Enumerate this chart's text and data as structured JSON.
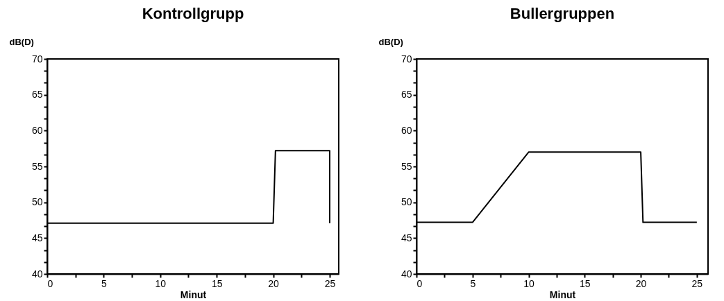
{
  "chart_data": [
    {
      "type": "line",
      "title": "Kontrollgrupp",
      "xlabel": "Minut",
      "ylabel": "dB(D)",
      "series": [
        {
          "color": "#000000",
          "x": [
            0,
            20,
            20.2,
            25,
            25
          ],
          "values": [
            47.1,
            47.1,
            57.2,
            57.2,
            47.1
          ]
        }
      ],
      "xlim": [
        0,
        25.8
      ],
      "xticks": [
        0,
        {
          "value": 2.5,
          "label": null
        },
        5,
        {
          "value": 7.5,
          "label": null
        },
        10,
        {
          "value": 12.5,
          "label": null
        },
        15,
        {
          "value": 17.5,
          "label": null
        },
        20,
        {
          "value": 22.5,
          "label": null
        },
        25
      ],
      "ylim": [
        40,
        70
      ],
      "yticks": [
        40,
        {
          "value": 41.67,
          "label": null
        },
        {
          "value": 43.33,
          "label": null
        },
        45,
        {
          "value": 46.67,
          "label": null
        },
        {
          "value": 48.33,
          "label": null
        },
        50,
        {
          "value": 51.67,
          "label": null
        },
        {
          "value": 53.33,
          "label": null
        },
        55,
        {
          "value": 56.67,
          "label": null
        },
        {
          "value": 58.33,
          "label": null
        },
        60,
        {
          "value": 61.67,
          "label": null
        },
        {
          "value": 63.33,
          "label": null
        },
        65,
        {
          "value": 66.67,
          "label": null
        },
        {
          "value": 68.33,
          "label": null
        },
        70
      ],
      "grid": false,
      "marker": "none",
      "line_style": "solid"
    },
    {
      "type": "line",
      "title": "Bullergruppen",
      "xlabel": "Minut",
      "ylabel": "dB(D)",
      "series": [
        {
          "color": "#000000",
          "x": [
            0,
            5,
            10,
            20,
            20.2,
            25
          ],
          "values": [
            47.2,
            47.2,
            57,
            57,
            47.2,
            47.2
          ]
        }
      ],
      "xlim": [
        0,
        26
      ],
      "xticks": [
        0,
        {
          "value": 2.5,
          "label": null
        },
        5,
        {
          "value": 7.5,
          "label": null
        },
        10,
        {
          "value": 12.5,
          "label": null
        },
        15,
        {
          "value": 17.5,
          "label": null
        },
        20,
        {
          "value": 22.5,
          "label": null
        },
        25
      ],
      "ylim": [
        40,
        70
      ],
      "yticks": [
        40,
        {
          "value": 41.67,
          "label": null
        },
        {
          "value": 43.33,
          "label": null
        },
        45,
        {
          "value": 46.67,
          "label": null
        },
        {
          "value": 48.33,
          "label": null
        },
        50,
        {
          "value": 51.67,
          "label": null
        },
        {
          "value": 53.33,
          "label": null
        },
        55,
        {
          "value": 56.67,
          "label": null
        },
        {
          "value": 58.33,
          "label": null
        },
        60,
        {
          "value": 61.67,
          "label": null
        },
        {
          "value": 63.33,
          "label": null
        },
        65,
        {
          "value": 66.67,
          "label": null
        },
        {
          "value": 68.33,
          "label": null
        },
        70
      ],
      "grid": false,
      "marker": "none",
      "line_style": "solid"
    }
  ]
}
